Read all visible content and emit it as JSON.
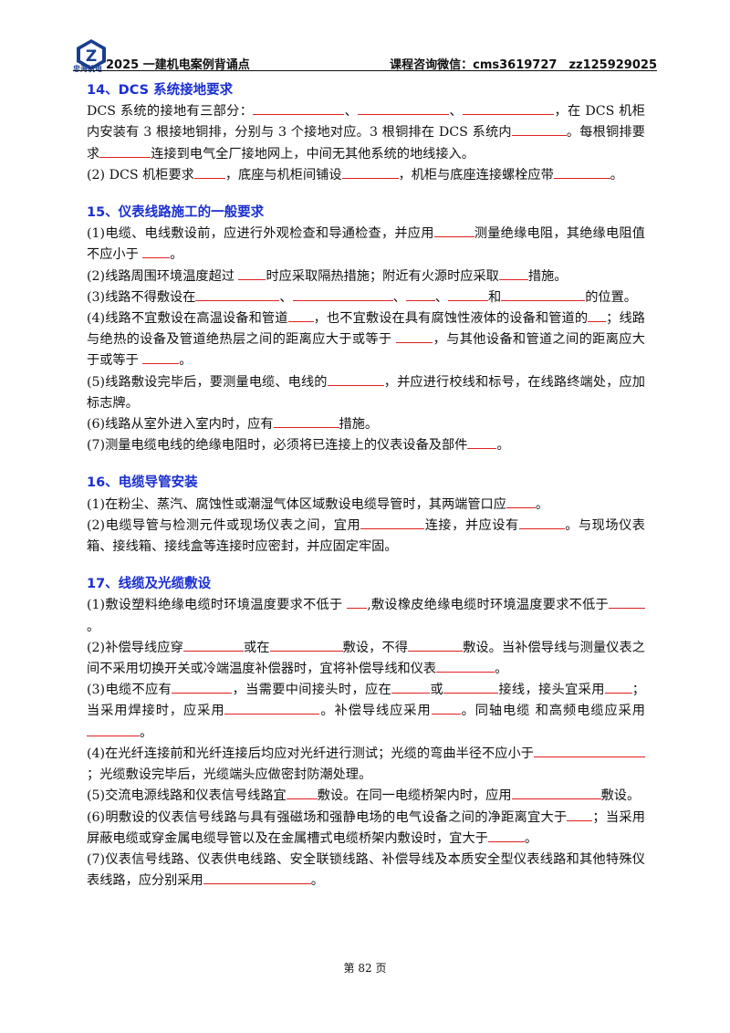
{
  "header": {
    "logo_text": "忠海机电",
    "title": "2025 一建机电案例背诵点",
    "contact": "课程咨询微信：cms3619727　zz125929025"
  },
  "sections": [
    {
      "heading": "14、DCS 系统接地要求",
      "items": [
        [
          "DCS 系统的接地有三部分：",
          {
            "w": 100
          },
          "、",
          {
            "w": 100
          },
          "、",
          {
            "w": 100
          },
          "，在 DCS 机柜内安装有 3 根接地铜排，分别与 3 个接地对应。3 根铜排在 DCS 系统内",
          {
            "w": 60
          },
          "。每根铜排要求",
          {
            "w": 56
          },
          "连接到电气全厂接地网上，中间无其他系统的地线接入。"
        ],
        [
          "(2) DCS 机柜要求",
          {
            "w": 34
          },
          "，底座与机柜间铺设",
          {
            "w": 62
          },
          "，机柜与底座连接螺栓应带",
          {
            "w": 62
          },
          "。"
        ]
      ]
    },
    {
      "heading": "15、仪表线路施工的一般要求",
      "items": [
        [
          "(1)电缆、电线敷设前，应进行外观检查和导通检查，并应用",
          {
            "w": 44
          },
          "测量绝缘电阻，其绝缘电阻值不应小于 ",
          {
            "w": 30
          },
          "。"
        ],
        [
          "(2)线路周围环境温度超过 ",
          {
            "w": 30
          },
          "时应采取隔热措施；附近有火源时应采取",
          {
            "w": 32
          },
          "措施。"
        ],
        [
          "(3)线路不得敷设在",
          {
            "w": 92
          },
          "、",
          {
            "w": 110
          },
          "、",
          {
            "w": 32
          },
          "、",
          {
            "w": 44
          },
          "和",
          {
            "w": 92
          },
          "的位置。"
        ],
        [
          "(4)线路不宜敷设在高温设备和管道",
          {
            "w": 28
          },
          "，也不宜敷设在具有腐蚀性液体的设备和管道的",
          {
            "w": 20
          },
          "；线路与绝热的设备及管道绝热层之间的距离应大于或等于 ",
          {
            "w": 40
          },
          "，与其他设备和管道之间的距离应大于或等于 ",
          {
            "w": 40
          },
          "。"
        ],
        [
          "(5)线路敷设完毕后，要测量电缆、电线的",
          {
            "w": 62
          },
          "，并应进行校线和标号，在线路终端处，应加标志牌。"
        ],
        [
          "(6)线路从室外进入室内时，应有",
          {
            "w": 72
          },
          "措施。"
        ],
        [
          "(7)测量电缆电线的绝缘电阻时，必须将已连接上的仪表设备及部件",
          {
            "w": 32
          },
          "。"
        ]
      ]
    },
    {
      "heading": "16、电缆导管安装",
      "items": [
        [
          "(1)在粉尘、蒸汽、腐蚀性或潮湿气体区域敷设电缆导管时，其两端管口应",
          {
            "w": 32
          },
          "。"
        ],
        [
          "(2)电缆导管与检测元件或现场仪表之间，宜用",
          {
            "w": 70
          },
          "连接，并应设有",
          {
            "w": 50
          },
          "。与现场仪表箱、接线箱、接线盒等连接时应密封，并应固定牢固。"
        ]
      ]
    },
    {
      "heading": "17、线缆及光缆敷设",
      "items": [
        [
          "(1)敷设塑料绝缘电缆时环境温度要求不低于 ",
          {
            "w": 22
          },
          ",敷设橡皮绝缘电缆时环境温度要求不低于",
          {
            "w": 40
          },
          "。"
        ],
        [
          "(2)补偿导线应穿",
          {
            "w": 66
          },
          "或在",
          {
            "w": 80
          },
          "敷设，不得",
          {
            "w": 60
          },
          "敷设。当补偿导线与测量仪表之间不采用切换开关或冷端温度补偿器时，宜将补偿导线和仪表",
          {
            "w": 64
          },
          "。"
        ],
        [
          "(3)电缆不应有",
          {
            "w": 66
          },
          "，当需要中间接头时，应在",
          {
            "w": 42
          },
          "或",
          {
            "w": 60
          },
          "接线，接头宜采用",
          {
            "w": 30
          },
          "；当采用焊接时，应采用",
          {
            "w": 104
          },
          "。补偿导线应采用",
          {
            "w": 32
          },
          "。同轴电缆 和高频电缆应采用",
          {
            "w": 58
          },
          "。"
        ],
        [
          "(4)在光纤连接前和光纤连接后均应对光纤进行测试；光缆的弯曲半径不应小于",
          {
            "w": 50
          },
          {
            "w": 72
          },
          "；光缆敷设完毕后，光缆端头应做密封防潮处理。"
        ],
        [
          "(5)交流电源线路和仪表信号线路宜",
          {
            "w": 34
          },
          "敷设。在同一电缆桥架内时，应用",
          {
            "w": 78
          },
          {
            "w": 20
          },
          "敷设。"
        ],
        [
          "(6)明敷设的仪表信号线路与具有强磁场和强静电场的电气设备之间的净距离宜大于",
          {
            "w": 28
          },
          "；当采用屏蔽电缆或穿金属电缆导管以及在金属槽式电缆桥架内敷设时，宜大于",
          {
            "w": 40
          },
          "。"
        ],
        [
          "(7)仪表信号线路、仪表供电线路、安全联锁线路、补偿导线及本质安全型仪表线路和其他特殊仪表线路，应分别采用",
          {
            "w": 118
          },
          "。"
        ]
      ]
    }
  ],
  "footer": {
    "page_label": "第 82 页"
  }
}
